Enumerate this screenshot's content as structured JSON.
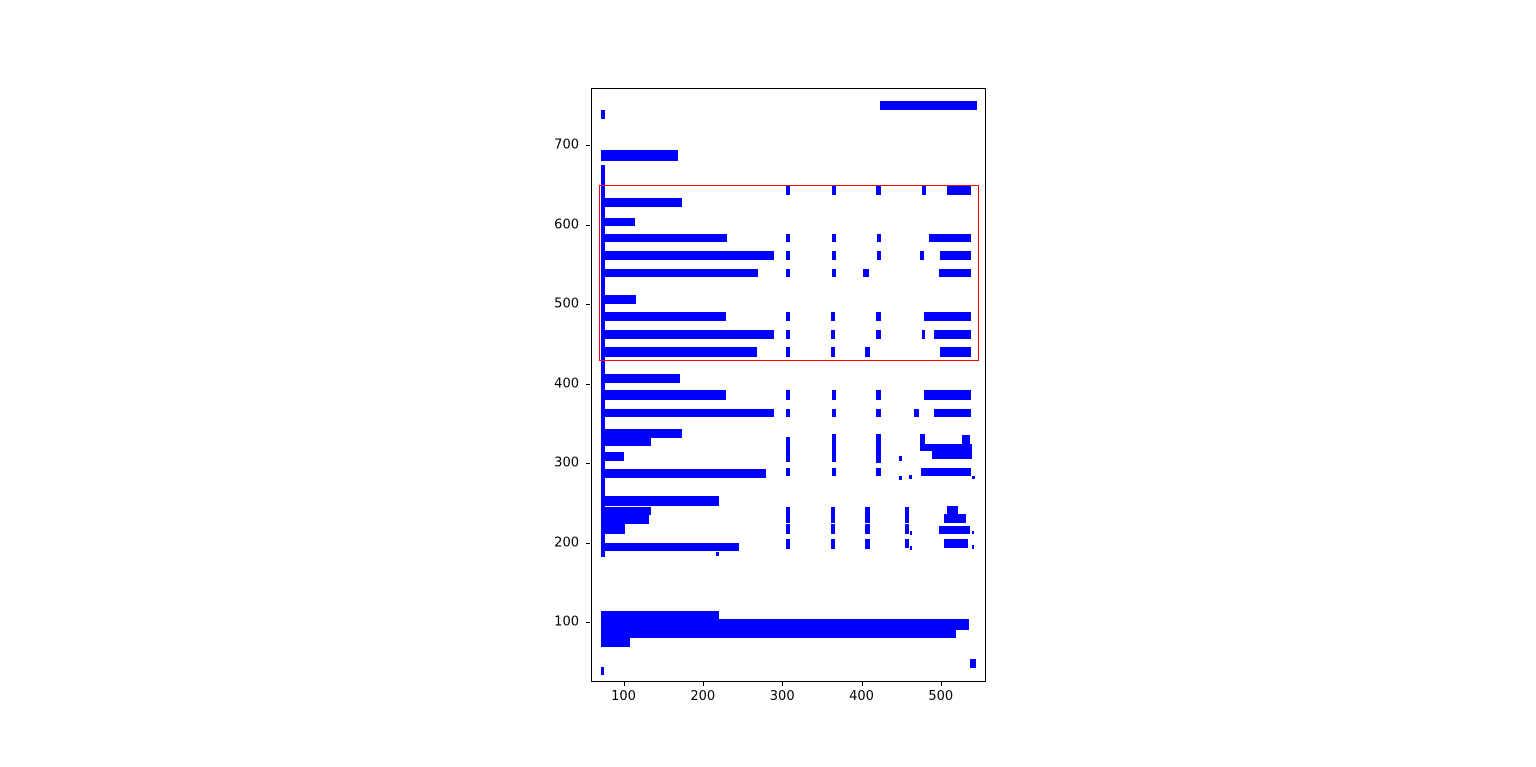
{
  "figure": {
    "background": "#ffffff",
    "plot_background": "#ffffff",
    "spine_color": "#000000",
    "tick_label_color": "#000000"
  },
  "colors": {
    "bar": "#0000ff",
    "highlight": "#ff0000"
  },
  "chart_data": {
    "type": "bar",
    "subtype": "layout-bounding-boxes",
    "title": "",
    "xlabel": "",
    "ylabel": "",
    "xlim": [
      59,
      557
    ],
    "ylim": [
      25,
      772
    ],
    "xticks": [
      100,
      200,
      300,
      400,
      500
    ],
    "yticks": [
      100,
      200,
      300,
      400,
      500,
      600,
      700
    ],
    "grid": false,
    "legend": null,
    "highlight_rect": [
      67.5,
      430,
      547,
      651
    ],
    "boxes": [
      [
        70,
        734,
        76,
        746
      ],
      [
        422,
        746,
        544,
        757
      ],
      [
        70,
        681,
        167,
        695
      ],
      [
        70,
        183,
        76,
        676
      ],
      [
        303,
        639,
        308,
        650
      ],
      [
        361,
        639,
        367,
        650
      ],
      [
        417,
        639,
        423,
        650
      ],
      [
        475,
        639,
        480,
        650
      ],
      [
        507,
        639,
        537,
        650
      ],
      [
        70,
        624,
        172,
        635
      ],
      [
        70,
        599,
        113,
        610
      ],
      [
        70,
        579,
        229,
        590
      ],
      [
        303,
        579,
        308,
        590
      ],
      [
        361,
        579,
        367,
        590
      ],
      [
        418,
        579,
        424,
        590
      ],
      [
        484,
        579,
        537,
        590
      ],
      [
        70,
        557,
        289,
        568
      ],
      [
        303,
        557,
        308,
        568
      ],
      [
        361,
        557,
        367,
        568
      ],
      [
        418,
        557,
        423,
        568
      ],
      [
        473,
        557,
        478,
        568
      ],
      [
        498,
        557,
        537,
        568
      ],
      [
        70,
        535,
        269,
        546
      ],
      [
        303,
        535,
        308,
        546
      ],
      [
        361,
        535,
        366,
        546
      ],
      [
        401,
        535,
        408,
        546
      ],
      [
        497,
        535,
        537,
        546
      ],
      [
        70,
        502,
        114,
        513
      ],
      [
        70,
        480,
        228,
        491
      ],
      [
        303,
        480,
        308,
        491
      ],
      [
        360,
        480,
        366,
        491
      ],
      [
        417,
        480,
        423,
        491
      ],
      [
        477,
        480,
        537,
        491
      ],
      [
        70,
        458,
        289,
        469
      ],
      [
        303,
        458,
        308,
        469
      ],
      [
        360,
        458,
        366,
        469
      ],
      [
        417,
        458,
        423,
        469
      ],
      [
        475,
        458,
        479,
        469
      ],
      [
        490,
        458,
        537,
        469
      ],
      [
        70,
        435,
        267,
        447
      ],
      [
        303,
        435,
        308,
        447
      ],
      [
        360,
        435,
        366,
        447
      ],
      [
        403,
        435,
        409,
        447
      ],
      [
        498,
        435,
        537,
        447
      ],
      [
        70,
        402,
        170,
        414
      ],
      [
        70,
        381,
        228,
        393
      ],
      [
        303,
        381,
        308,
        393
      ],
      [
        361,
        381,
        367,
        393
      ],
      [
        417,
        381,
        423,
        393
      ],
      [
        478,
        381,
        537,
        393
      ],
      [
        70,
        359,
        289,
        370
      ],
      [
        303,
        359,
        308,
        370
      ],
      [
        361,
        359,
        367,
        370
      ],
      [
        417,
        359,
        423,
        370
      ],
      [
        465,
        359,
        471,
        370
      ],
      [
        490,
        359,
        537,
        370
      ],
      [
        70,
        333,
        172,
        344
      ],
      [
        70,
        323,
        133,
        333
      ],
      [
        70,
        304,
        100,
        315
      ],
      [
        303,
        303,
        308,
        334
      ],
      [
        361,
        303,
        367,
        338
      ],
      [
        417,
        301,
        423,
        338
      ],
      [
        472,
        325,
        479,
        338
      ],
      [
        526,
        325,
        536,
        337
      ],
      [
        472,
        317,
        538,
        325
      ],
      [
        488,
        306,
        538,
        317
      ],
      [
        446,
        304,
        450,
        311
      ],
      [
        70,
        283,
        278,
        294
      ],
      [
        303,
        285,
        308,
        296
      ],
      [
        361,
        285,
        367,
        296
      ],
      [
        417,
        285,
        423,
        296
      ],
      [
        459,
        282,
        463,
        287
      ],
      [
        474,
        285,
        537,
        296
      ],
      [
        538,
        282,
        542,
        286
      ],
      [
        446,
        281,
        450,
        286
      ],
      [
        70,
        248,
        219,
        260
      ],
      [
        70,
        236,
        134,
        246
      ],
      [
        70,
        225,
        131,
        236
      ],
      [
        70,
        213,
        101,
        225
      ],
      [
        70,
        191,
        244,
        201
      ],
      [
        215,
        185,
        219,
        190
      ],
      [
        303,
        226,
        308,
        246
      ],
      [
        303,
        213,
        308,
        225
      ],
      [
        303,
        193,
        308,
        206
      ],
      [
        360,
        226,
        366,
        246
      ],
      [
        360,
        213,
        366,
        225
      ],
      [
        360,
        193,
        366,
        206
      ],
      [
        403,
        226,
        409,
        246
      ],
      [
        403,
        213,
        409,
        225
      ],
      [
        403,
        193,
        409,
        206
      ],
      [
        453,
        226,
        458,
        246
      ],
      [
        453,
        213,
        458,
        225
      ],
      [
        453,
        195,
        458,
        206
      ],
      [
        507,
        235,
        520,
        248
      ],
      [
        503,
        226,
        530,
        237
      ],
      [
        497,
        213,
        536,
        223
      ],
      [
        503,
        195,
        533,
        206
      ],
      [
        460,
        211,
        463,
        216
      ],
      [
        460,
        192,
        463,
        197
      ],
      [
        538,
        212,
        541,
        216
      ],
      [
        538,
        194,
        541,
        198
      ],
      [
        70,
        105,
        219,
        116
      ],
      [
        70,
        92,
        534,
        105
      ],
      [
        70,
        82,
        518,
        92
      ],
      [
        70,
        70,
        107,
        82
      ],
      [
        70,
        35,
        74,
        45
      ],
      [
        535,
        44,
        543,
        55
      ]
    ]
  }
}
